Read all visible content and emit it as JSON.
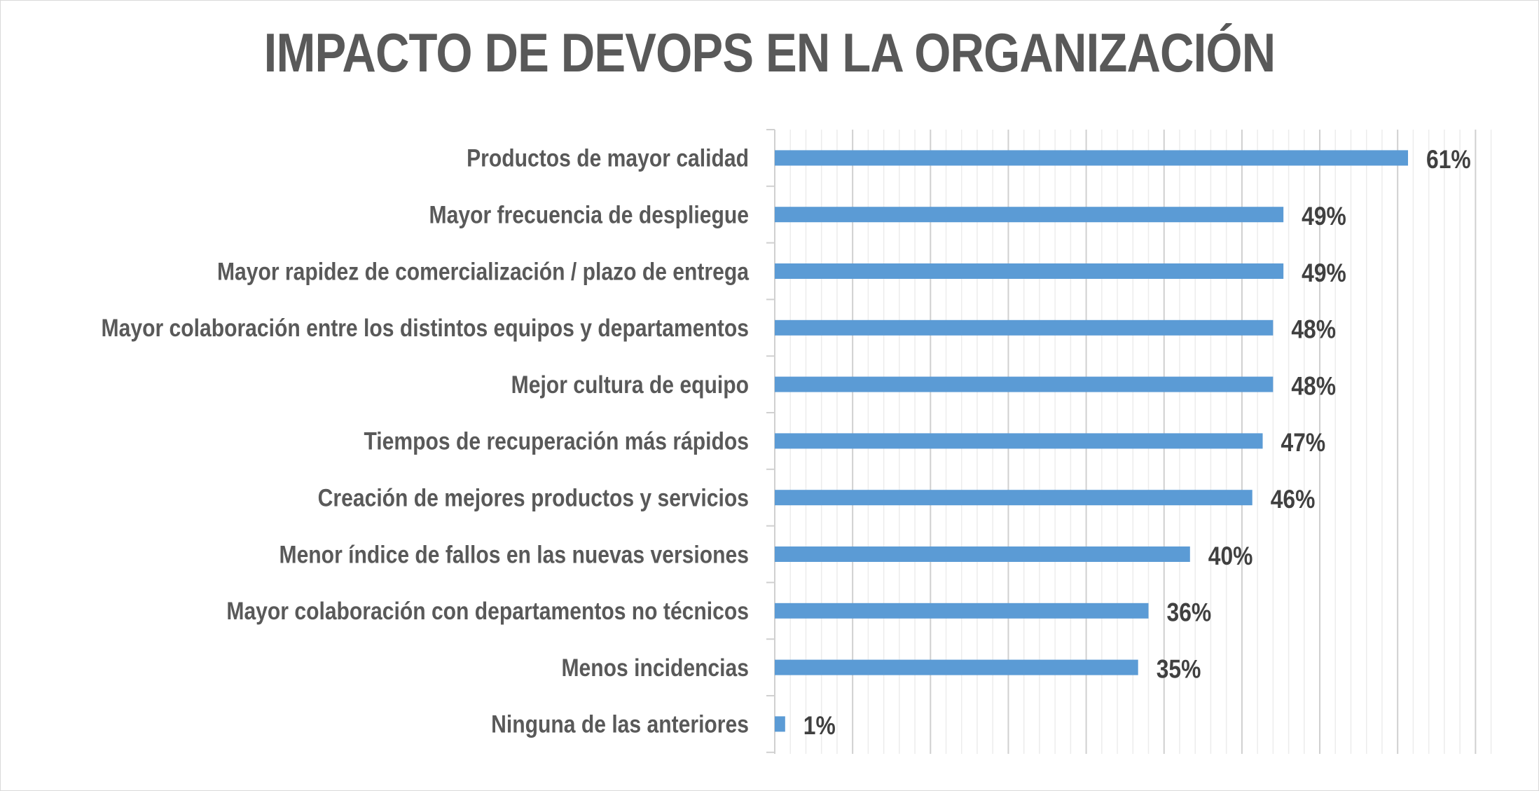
{
  "chart_data": {
    "type": "bar",
    "orientation": "horizontal",
    "title": "IMPACTO DE DEVOPS EN LA ORGANIZACIÓN",
    "categories": [
      "Productos de mayor calidad",
      "Mayor frecuencia de despliegue",
      "Mayor rapidez de comercialización / plazo de entrega",
      "Mayor colaboración entre los distintos equipos y departamentos",
      "Mejor cultura de equipo",
      "Tiempos de recuperación más rápidos",
      "Creación de mejores productos y servicios",
      "Menor índice de fallos en las nuevas versiones",
      "Mayor colaboración con departamentos no técnicos",
      "Menos incidencias",
      "Ninguna de las anteriores"
    ],
    "values": [
      61,
      49,
      49,
      48,
      48,
      47,
      46,
      40,
      36,
      35,
      1
    ],
    "value_labels": [
      "61%",
      "49%",
      "49%",
      "48%",
      "48%",
      "47%",
      "46%",
      "40%",
      "36%",
      "35%",
      "1%"
    ],
    "xlim": [
      0,
      70
    ],
    "grid": true,
    "bar_color": "#5b9bd5"
  }
}
